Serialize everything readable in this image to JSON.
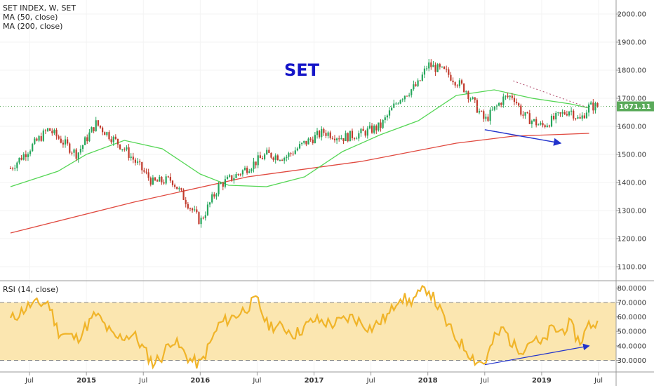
{
  "legend": {
    "symbol": "SET INDEX, W, SET",
    "ma50": "MA (50, close)",
    "ma200": "MA (200, close)",
    "rsi": "RSI (14, close)"
  },
  "colors": {
    "up": "#26a65b",
    "down": "#c0392b",
    "ma50": "#55d655",
    "ma200": "#e0493f",
    "rsi": "#f0b429",
    "rsi_band": "#fbe6b0",
    "trendline": "#2233cc",
    "annotation": "#1616c8",
    "price_tag": "#5aaa5a"
  },
  "chart_data": [
    {
      "type": "candlestick",
      "title": "",
      "annotation": "SET",
      "y_axis": {
        "min": 1050,
        "max": 2050,
        "ticks": [
          "2000.00",
          "1900.00",
          "1800.00",
          "1700.00",
          "1600.00",
          "1500.00",
          "1400.00",
          "1300.00",
          "1200.00",
          "1100.00"
        ]
      },
      "x_axis": {
        "start": "2014-05",
        "end": "2019-07",
        "ticks": [
          "Jul",
          "2015",
          "Jul",
          "2016",
          "Jul",
          "2017",
          "Jul",
          "2018",
          "Jul",
          "2019",
          "Jul"
        ]
      },
      "last_price": "1671.11",
      "close_anchors": [
        {
          "x": "2014-05",
          "y": 1450
        },
        {
          "x": "2014-07",
          "y": 1520
        },
        {
          "x": "2014-09",
          "y": 1590
        },
        {
          "x": "2014-12",
          "y": 1500
        },
        {
          "x": "2015-02",
          "y": 1610
        },
        {
          "x": "2015-05",
          "y": 1520
        },
        {
          "x": "2015-08",
          "y": 1400
        },
        {
          "x": "2015-10",
          "y": 1410
        },
        {
          "x": "2016-01",
          "y": 1260
        },
        {
          "x": "2016-03",
          "y": 1390
        },
        {
          "x": "2016-05",
          "y": 1430
        },
        {
          "x": "2016-08",
          "y": 1500
        },
        {
          "x": "2016-10",
          "y": 1490
        },
        {
          "x": "2016-12",
          "y": 1540
        },
        {
          "x": "2017-02",
          "y": 1580
        },
        {
          "x": "2017-04",
          "y": 1560
        },
        {
          "x": "2017-06",
          "y": 1575
        },
        {
          "x": "2017-08",
          "y": 1600
        },
        {
          "x": "2017-10",
          "y": 1700
        },
        {
          "x": "2017-12",
          "y": 1750
        },
        {
          "x": "2018-01",
          "y": 1820
        },
        {
          "x": "2018-03",
          "y": 1790
        },
        {
          "x": "2018-05",
          "y": 1730
        },
        {
          "x": "2018-07",
          "y": 1620
        },
        {
          "x": "2018-09",
          "y": 1700
        },
        {
          "x": "2018-10",
          "y": 1710
        },
        {
          "x": "2018-11",
          "y": 1640
        },
        {
          "x": "2019-01",
          "y": 1600
        },
        {
          "x": "2019-03",
          "y": 1640
        },
        {
          "x": "2019-04",
          "y": 1660
        },
        {
          "x": "2019-05",
          "y": 1620
        },
        {
          "x": "2019-06",
          "y": 1671
        }
      ],
      "series": [
        {
          "name": "MA (50, close)",
          "type": "line",
          "points": [
            {
              "x": "2014-05",
              "y": 1385
            },
            {
              "x": "2014-10",
              "y": 1440
            },
            {
              "x": "2015-01",
              "y": 1500
            },
            {
              "x": "2015-05",
              "y": 1550
            },
            {
              "x": "2015-09",
              "y": 1520
            },
            {
              "x": "2016-01",
              "y": 1430
            },
            {
              "x": "2016-04",
              "y": 1390
            },
            {
              "x": "2016-08",
              "y": 1385
            },
            {
              "x": "2016-12",
              "y": 1420
            },
            {
              "x": "2017-04",
              "y": 1510
            },
            {
              "x": "2017-08",
              "y": 1570
            },
            {
              "x": "2017-12",
              "y": 1620
            },
            {
              "x": "2018-04",
              "y": 1710
            },
            {
              "x": "2018-08",
              "y": 1730
            },
            {
              "x": "2018-12",
              "y": 1700
            },
            {
              "x": "2019-04",
              "y": 1680
            },
            {
              "x": "2019-06",
              "y": 1665
            }
          ]
        },
        {
          "name": "MA (200, close)",
          "type": "line",
          "points": [
            {
              "x": "2014-05",
              "y": 1220
            },
            {
              "x": "2015-06",
              "y": 1330
            },
            {
              "x": "2016-06",
              "y": 1420
            },
            {
              "x": "2017-06",
              "y": 1475
            },
            {
              "x": "2018-04",
              "y": 1540
            },
            {
              "x": "2018-10",
              "y": 1565
            },
            {
              "x": "2019-06",
              "y": 1575
            }
          ]
        }
      ],
      "trendlines": [
        {
          "from": {
            "x": "2018-07",
            "y": 1588
          },
          "to": {
            "x": "2019-03",
            "y": 1540
          },
          "arrow": true
        },
        {
          "from": {
            "x": "2018-10",
            "y": 1762
          },
          "to": {
            "x": "2019-06",
            "y": 1665
          },
          "dotted": true
        }
      ]
    },
    {
      "type": "line",
      "title": "RSI (14, close)",
      "y_axis": {
        "min": 22,
        "max": 85,
        "ticks": [
          "80.0000",
          "70.0000",
          "60.0000",
          "50.0000",
          "40.0000",
          "30.0000"
        ]
      },
      "band": [
        30,
        70
      ],
      "points": [
        {
          "x": "2014-05",
          "y": 58
        },
        {
          "x": "2014-07",
          "y": 68
        },
        {
          "x": "2014-09",
          "y": 70
        },
        {
          "x": "2014-10",
          "y": 50
        },
        {
          "x": "2014-12",
          "y": 45
        },
        {
          "x": "2015-02",
          "y": 62
        },
        {
          "x": "2015-04",
          "y": 45
        },
        {
          "x": "2015-06",
          "y": 48
        },
        {
          "x": "2015-08",
          "y": 28
        },
        {
          "x": "2015-09",
          "y": 33
        },
        {
          "x": "2015-10",
          "y": 45
        },
        {
          "x": "2015-12",
          "y": 30
        },
        {
          "x": "2016-01",
          "y": 27
        },
        {
          "x": "2016-03",
          "y": 55
        },
        {
          "x": "2016-05",
          "y": 62
        },
        {
          "x": "2016-07",
          "y": 72
        },
        {
          "x": "2016-08",
          "y": 55
        },
        {
          "x": "2016-10",
          "y": 52
        },
        {
          "x": "2016-11",
          "y": 48
        },
        {
          "x": "2017-01",
          "y": 58
        },
        {
          "x": "2017-03",
          "y": 55
        },
        {
          "x": "2017-05",
          "y": 60
        },
        {
          "x": "2017-07",
          "y": 52
        },
        {
          "x": "2017-09",
          "y": 62
        },
        {
          "x": "2017-10",
          "y": 75
        },
        {
          "x": "2017-11",
          "y": 70
        },
        {
          "x": "2018-01",
          "y": 80
        },
        {
          "x": "2018-02",
          "y": 68
        },
        {
          "x": "2018-03",
          "y": 55
        },
        {
          "x": "2018-04",
          "y": 45
        },
        {
          "x": "2018-05",
          "y": 38
        },
        {
          "x": "2018-06",
          "y": 30
        },
        {
          "x": "2018-07",
          "y": 28
        },
        {
          "x": "2018-08",
          "y": 45
        },
        {
          "x": "2018-09",
          "y": 52
        },
        {
          "x": "2018-10",
          "y": 40
        },
        {
          "x": "2018-11",
          "y": 38
        },
        {
          "x": "2018-12",
          "y": 45
        },
        {
          "x": "2019-01",
          "y": 40
        },
        {
          "x": "2019-02",
          "y": 52
        },
        {
          "x": "2019-03",
          "y": 50
        },
        {
          "x": "2019-04",
          "y": 55
        },
        {
          "x": "2019-05",
          "y": 42
        },
        {
          "x": "2019-06",
          "y": 55
        }
      ],
      "trendline": {
        "from": {
          "x": "2018-07",
          "y": 27
        },
        "to": {
          "x": "2019-06",
          "y": 40
        },
        "arrow": true
      }
    }
  ]
}
